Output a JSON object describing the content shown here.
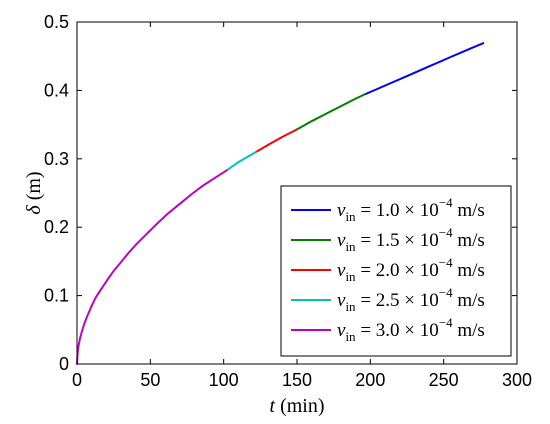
{
  "chart_data": {
    "type": "line",
    "xlabel": {
      "var": "t",
      "unit": " (min)"
    },
    "ylabel": {
      "var": "δ",
      "unit": " (m)"
    },
    "xlim": [
      0,
      300
    ],
    "ylim": [
      0,
      0.5
    ],
    "xticks": [
      0,
      50,
      100,
      150,
      200,
      250,
      300
    ],
    "yticks": [
      0,
      0.1,
      0.2,
      0.3,
      0.4,
      0.5
    ],
    "xtick_labels": [
      "0",
      "50",
      "100",
      "150",
      "200",
      "250",
      "300"
    ],
    "ytick_labels": [
      "0",
      "0.1",
      "0.2",
      "0.3",
      "0.4",
      "0.5"
    ],
    "grid": false,
    "legend_position": "bottom-right",
    "series": [
      {
        "name_var": "v",
        "name_sub": "in",
        "name_eq": " = 1.0 × 10",
        "name_exp": "−4",
        "name_unit": " m/s",
        "color": "#0000ff",
        "x": [
          196,
          210,
          225,
          240,
          255,
          268,
          277
        ],
        "y": [
          0.394,
          0.407,
          0.421,
          0.435,
          0.449,
          0.461,
          0.469
        ]
      },
      {
        "name_var": "v",
        "name_sub": "in",
        "name_eq": " = 1.5 × 10",
        "name_exp": "−4",
        "name_unit": " m/s",
        "color": "#008000",
        "x": [
          150,
          160,
          170,
          180,
          190,
          196
        ],
        "y": [
          0.343,
          0.355,
          0.366,
          0.377,
          0.388,
          0.394
        ]
      },
      {
        "name_var": "v",
        "name_sub": "in",
        "name_eq": " = 2.0 × 10",
        "name_exp": "−4",
        "name_unit": " m/s",
        "color": "#ff0000",
        "x": [
          122,
          130,
          140,
          150
        ],
        "y": [
          0.31,
          0.32,
          0.332,
          0.343
        ]
      },
      {
        "name_var": "v",
        "name_sub": "in",
        "name_eq": " = 2.5 × 10",
        "name_exp": "−4",
        "name_unit": " m/s",
        "color": "#00bfbf",
        "x": [
          102,
          110,
          118,
          122
        ],
        "y": [
          0.283,
          0.295,
          0.305,
          0.31
        ]
      },
      {
        "name_var": "v",
        "name_sub": "in",
        "name_eq": " = 3.0 × 10",
        "name_exp": "−4",
        "name_unit": " m/s",
        "color": "#bf00bf",
        "x": [
          0,
          0.5,
          1,
          2,
          3,
          5,
          7,
          10,
          13,
          17,
          21,
          25,
          30,
          35,
          40,
          47,
          55,
          62,
          70,
          78,
          86,
          94,
          102
        ],
        "y": [
          0,
          0.018,
          0.026,
          0.037,
          0.045,
          0.059,
          0.07,
          0.085,
          0.098,
          0.111,
          0.124,
          0.136,
          0.149,
          0.162,
          0.174,
          0.189,
          0.206,
          0.22,
          0.234,
          0.248,
          0.261,
          0.272,
          0.283
        ]
      }
    ]
  }
}
